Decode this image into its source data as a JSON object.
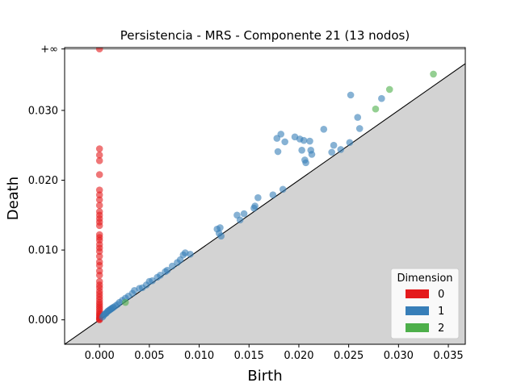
{
  "chart_data": {
    "type": "scatter",
    "title": "Persistencia - MRS - Componente 21 (13 nodos)",
    "xlabel": "Birth",
    "ylabel": "Death",
    "xlim": [
      -0.0035,
      0.0367
    ],
    "ylim": [
      -0.0035,
      0.039
    ],
    "infinity_label": "+∞",
    "infinity_y": 0.0388,
    "x_ticks": [
      {
        "value": 0.0,
        "label": "0.000"
      },
      {
        "value": 0.005,
        "label": "0.005"
      },
      {
        "value": 0.01,
        "label": "0.010"
      },
      {
        "value": 0.015,
        "label": "0.015"
      },
      {
        "value": 0.02,
        "label": "0.020"
      },
      {
        "value": 0.025,
        "label": "0.025"
      },
      {
        "value": 0.03,
        "label": "0.030"
      },
      {
        "value": 0.035,
        "label": "0.035"
      }
    ],
    "y_ticks": [
      {
        "value": 0.0,
        "label": "0.000"
      },
      {
        "value": 0.01,
        "label": "0.010"
      },
      {
        "value": 0.02,
        "label": "0.020"
      },
      {
        "value": 0.03,
        "label": "0.030"
      }
    ],
    "legend": {
      "title": "Dimension",
      "position": "lower-right",
      "entries": [
        {
          "label": "0",
          "color": "#e41a1c"
        },
        {
          "label": "1",
          "color": "#377eb8"
        },
        {
          "label": "2",
          "color": "#4daf4a"
        }
      ]
    },
    "diagonal": true,
    "grid": false,
    "series": [
      {
        "name": "0",
        "color": "#e41a1c",
        "points": [
          [
            0,
            0.0388
          ],
          [
            0,
            0.0245
          ],
          [
            0,
            0.0236
          ],
          [
            0,
            0.0228
          ],
          [
            0,
            0.0208
          ],
          [
            0,
            0.0186
          ],
          [
            0,
            0.0179
          ],
          [
            0,
            0.0172
          ],
          [
            0,
            0.0164
          ],
          [
            0,
            0.0155
          ],
          [
            0,
            0.015
          ],
          [
            0,
            0.0145
          ],
          [
            0,
            0.014
          ],
          [
            0,
            0.0135
          ],
          [
            0,
            0.0122
          ],
          [
            0,
            0.0118
          ],
          [
            0,
            0.0114
          ],
          [
            0,
            0.0108
          ],
          [
            0,
            0.0103
          ],
          [
            0,
            0.0098
          ],
          [
            0,
            0.0091
          ],
          [
            0,
            0.0083
          ],
          [
            0,
            0.0078
          ],
          [
            0,
            0.007
          ],
          [
            0,
            0.0064
          ],
          [
            0,
            0.0055
          ],
          [
            0,
            0.005
          ],
          [
            0,
            0.0046
          ],
          [
            0,
            0.0041
          ],
          [
            0,
            0.0037
          ],
          [
            0,
            0.0033
          ],
          [
            0,
            0.0029
          ],
          [
            0,
            0.0025
          ],
          [
            0,
            0.0022
          ],
          [
            0,
            0.0019
          ],
          [
            0,
            0.0016
          ],
          [
            0,
            0.0013
          ],
          [
            0,
            0.001
          ],
          [
            0,
            0.0008
          ],
          [
            0,
            0.0006
          ],
          [
            0,
            0.0004
          ],
          [
            0,
            0.0002
          ],
          [
            0,
            0.0001
          ],
          [
            0,
            0.0
          ]
        ]
      },
      {
        "name": "1",
        "color": "#377eb8",
        "points": [
          [
            0.0003,
            0.0004
          ],
          [
            0.0004,
            0.0006
          ],
          [
            0.0005,
            0.0008
          ],
          [
            0.0006,
            0.0009
          ],
          [
            0.0007,
            0.001
          ],
          [
            0.0008,
            0.0012
          ],
          [
            0.0009,
            0.0013
          ],
          [
            0.001,
            0.0014
          ],
          [
            0.0011,
            0.0015
          ],
          [
            0.0012,
            0.0016
          ],
          [
            0.0013,
            0.0017
          ],
          [
            0.0014,
            0.0018
          ],
          [
            0.0016,
            0.002
          ],
          [
            0.0018,
            0.0022
          ],
          [
            0.002,
            0.0025
          ],
          [
            0.0023,
            0.0028
          ],
          [
            0.0026,
            0.0031
          ],
          [
            0.0029,
            0.0034
          ],
          [
            0.0033,
            0.0038
          ],
          [
            0.0035,
            0.0042
          ],
          [
            0.004,
            0.0045
          ],
          [
            0.0043,
            0.0046
          ],
          [
            0.0047,
            0.005
          ],
          [
            0.005,
            0.0055
          ],
          [
            0.0053,
            0.0056
          ],
          [
            0.0058,
            0.0061
          ],
          [
            0.0061,
            0.0064
          ],
          [
            0.0066,
            0.0069
          ],
          [
            0.0068,
            0.0071
          ],
          [
            0.0073,
            0.0077
          ],
          [
            0.0078,
            0.0082
          ],
          [
            0.0081,
            0.0086
          ],
          [
            0.0084,
            0.0093
          ],
          [
            0.0086,
            0.0096
          ],
          [
            0.0091,
            0.0094
          ],
          [
            0.0118,
            0.013
          ],
          [
            0.012,
            0.0124
          ],
          [
            0.0122,
            0.012
          ],
          [
            0.0121,
            0.0132
          ],
          [
            0.0138,
            0.015
          ],
          [
            0.0141,
            0.0143
          ],
          [
            0.0145,
            0.0152
          ],
          [
            0.0155,
            0.016
          ],
          [
            0.0156,
            0.0163
          ],
          [
            0.0159,
            0.0175
          ],
          [
            0.0174,
            0.0179
          ],
          [
            0.0184,
            0.0187
          ],
          [
            0.0178,
            0.026
          ],
          [
            0.0182,
            0.0266
          ],
          [
            0.0179,
            0.0241
          ],
          [
            0.0186,
            0.0255
          ],
          [
            0.0196,
            0.0262
          ],
          [
            0.0201,
            0.0259
          ],
          [
            0.0205,
            0.0257
          ],
          [
            0.0211,
            0.0256
          ],
          [
            0.0203,
            0.0243
          ],
          [
            0.0212,
            0.0243
          ],
          [
            0.0213,
            0.0237
          ],
          [
            0.0206,
            0.0229
          ],
          [
            0.0207,
            0.0225
          ],
          [
            0.0225,
            0.0273
          ],
          [
            0.0233,
            0.024
          ],
          [
            0.0235,
            0.025
          ],
          [
            0.0242,
            0.0244
          ],
          [
            0.0251,
            0.0254
          ],
          [
            0.0252,
            0.0322
          ],
          [
            0.0259,
            0.029
          ],
          [
            0.0261,
            0.0274
          ],
          [
            0.0283,
            0.0317
          ]
        ]
      },
      {
        "name": "2",
        "color": "#4daf4a",
        "points": [
          [
            0.0026,
            0.0025
          ],
          [
            0.0277,
            0.0302
          ],
          [
            0.0291,
            0.033
          ],
          [
            0.0335,
            0.0352
          ]
        ]
      }
    ]
  }
}
